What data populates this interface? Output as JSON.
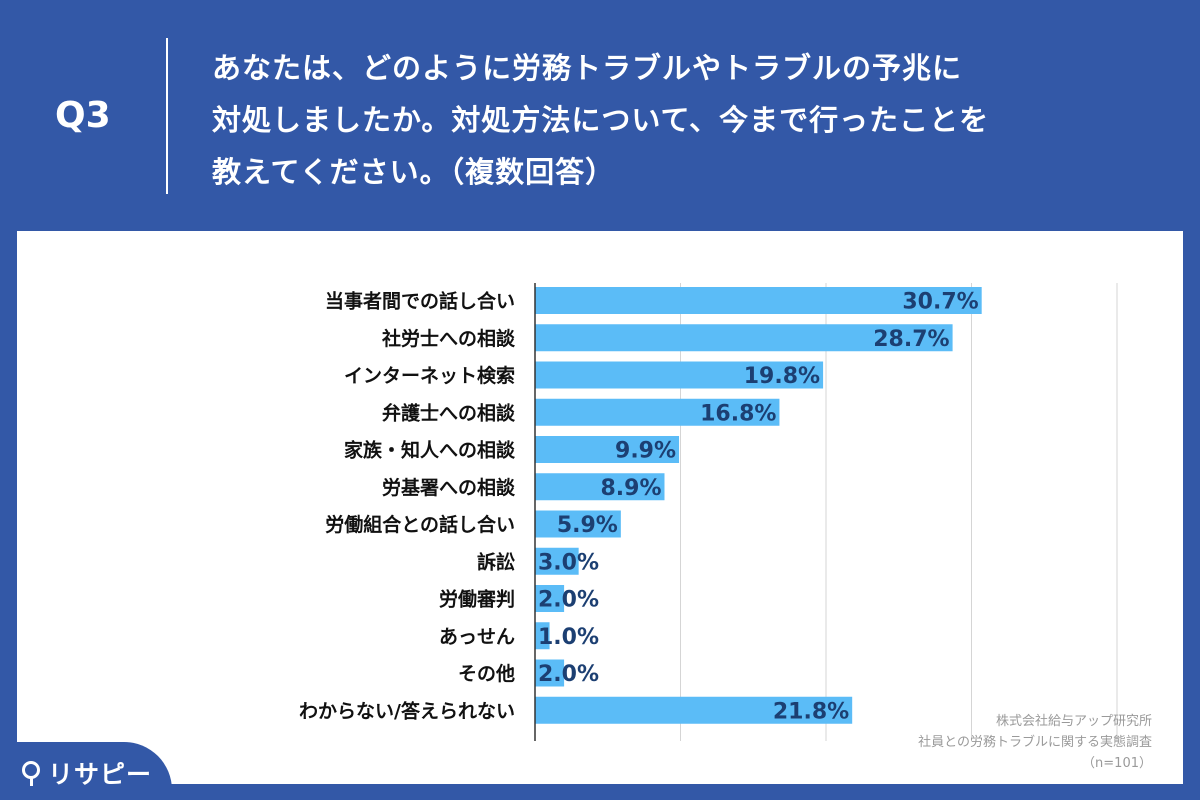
{
  "header": {
    "q_label": "Q3",
    "question_lines": [
      "あなたは、どのように労務トラブルやトラブルの予兆に",
      "対処しましたか。対処方法について、今まで行ったことを",
      "教えてください。（複数回答）"
    ]
  },
  "source": {
    "company": "株式会社給与アップ研究所",
    "survey": "社員との労務トラブルに関する実態調査",
    "n": "（n=101）"
  },
  "logo": {
    "text": "リサピー"
  },
  "colors": {
    "background": "#3358a7",
    "bar": "#5bbcf7",
    "value_text": "#1c3f72",
    "grid": "#d5d5d5"
  },
  "chart_data": {
    "type": "bar",
    "orientation": "horizontal",
    "categories": [
      "当事者間での話し合い",
      "社労士への相談",
      "インターネット検索",
      "弁護士への相談",
      "家族・知人への相談",
      "労基署への相談",
      "労働組合との話し合い",
      "訴訟",
      "労働審判",
      "あっせん",
      "その他",
      "わからない/答えられない"
    ],
    "values": [
      30.7,
      28.7,
      19.8,
      16.8,
      9.9,
      8.9,
      5.9,
      3.0,
      2.0,
      1.0,
      2.0,
      21.8
    ],
    "value_labels": [
      "30.7%",
      "28.7%",
      "19.8%",
      "16.8%",
      "9.9%",
      "8.9%",
      "5.9%",
      "3.0%",
      "2.0%",
      "1.0%",
      "2.0%",
      "21.8%"
    ],
    "xlim": [
      0,
      40
    ],
    "grid": true
  }
}
